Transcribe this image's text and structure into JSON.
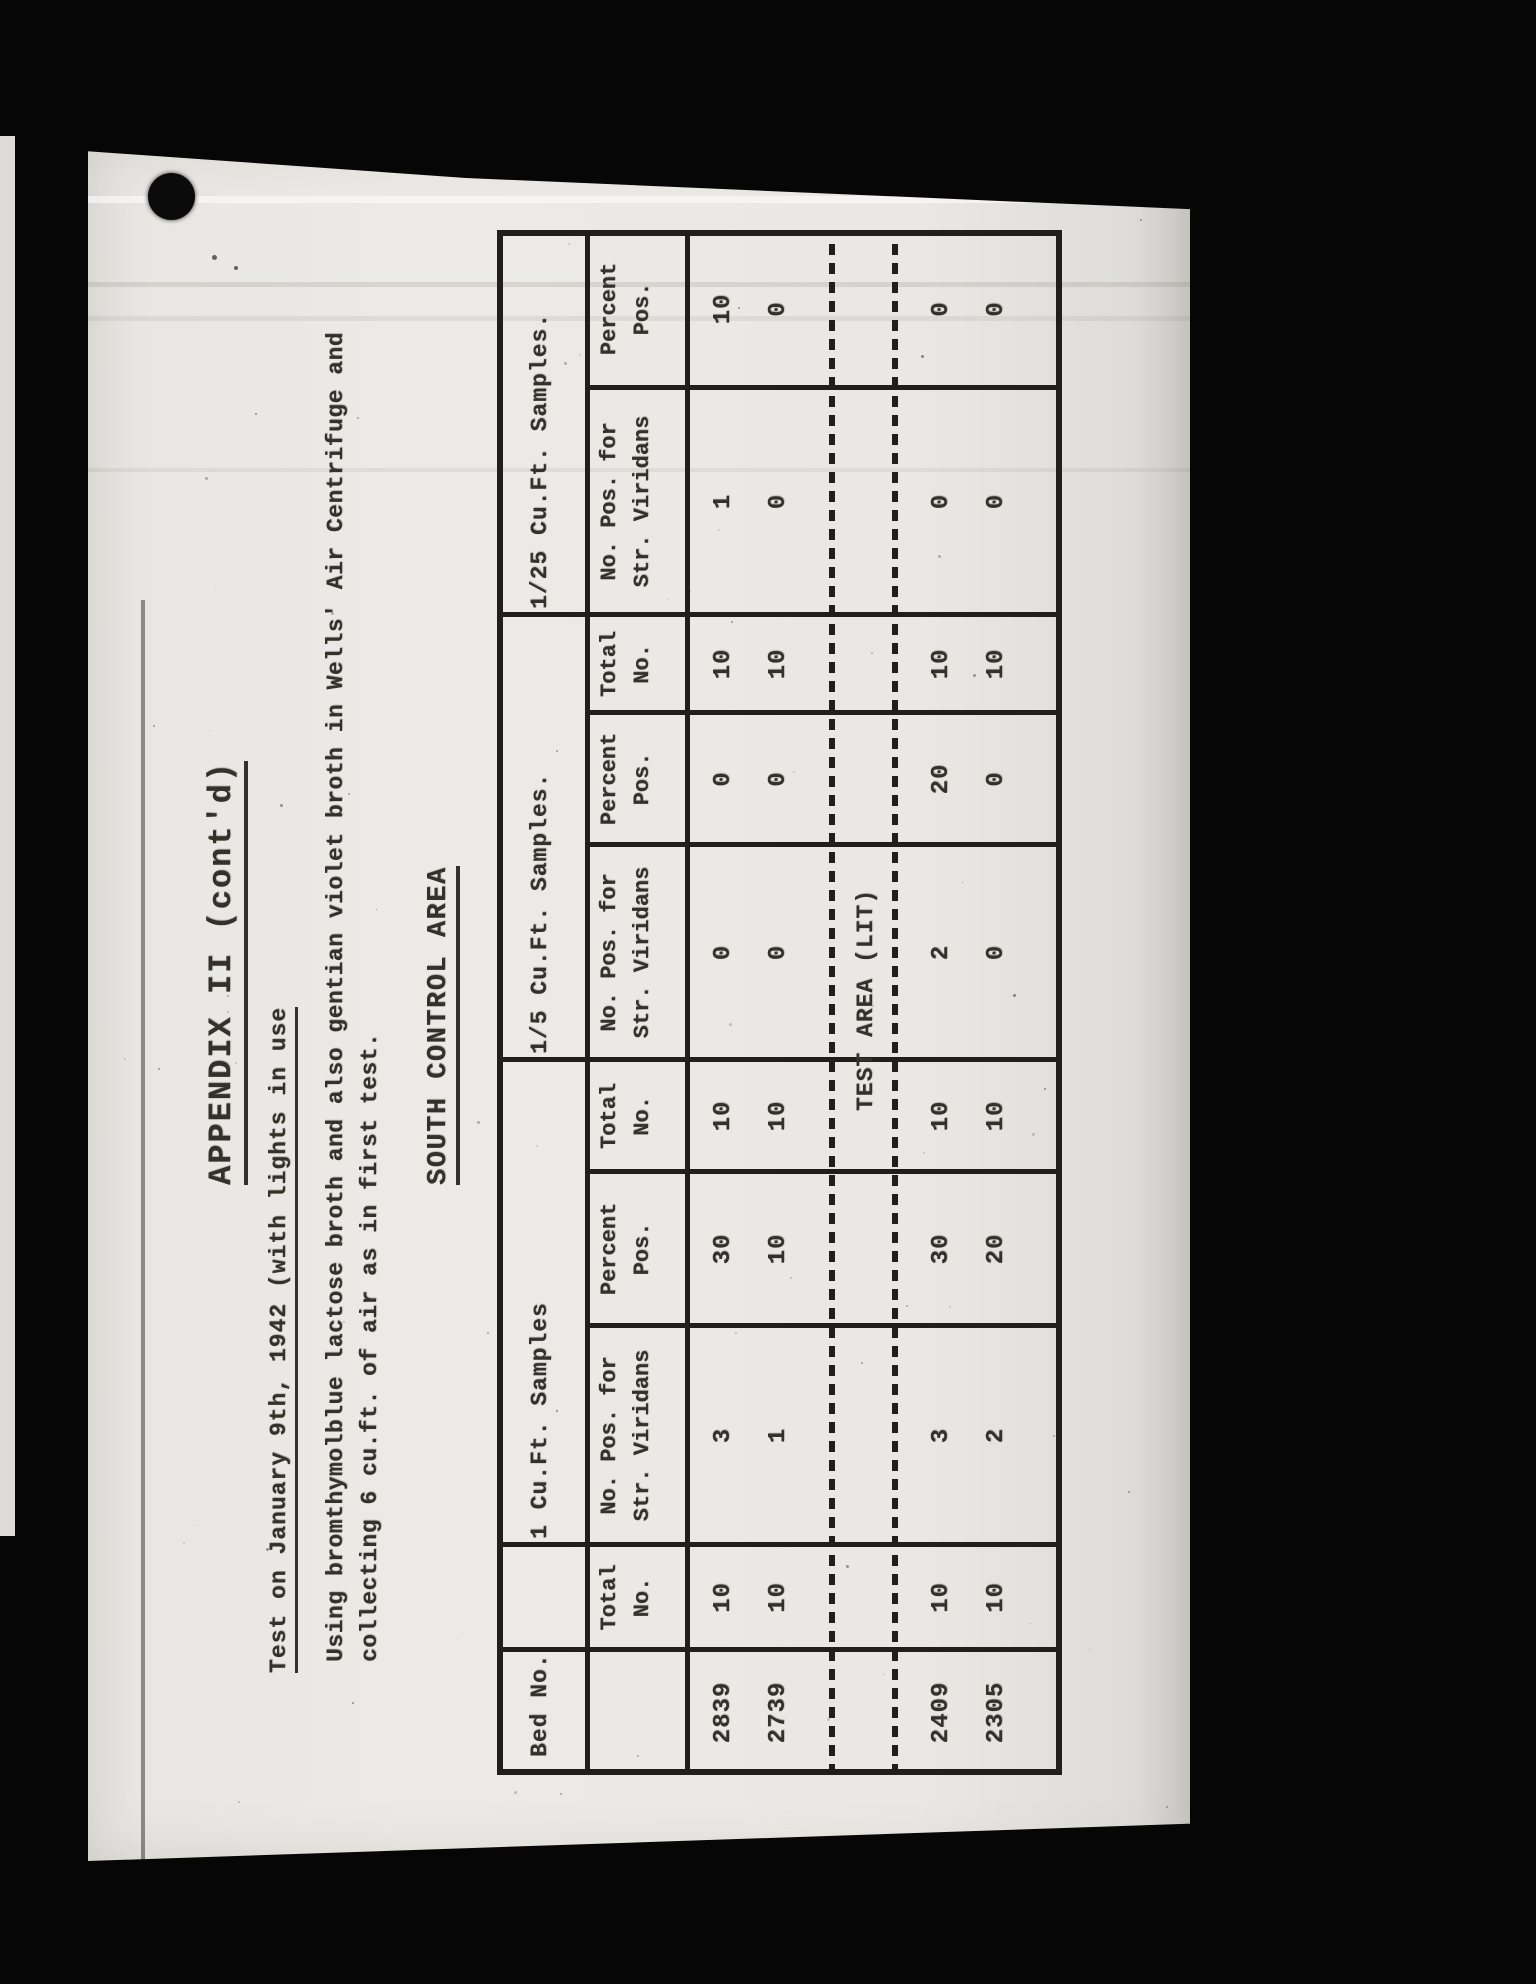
{
  "document": {
    "appendix_title": "APPENDIX II (cont'd)",
    "test_title": "Test on January 9th, 1942 (with lights in use",
    "description": {
      "line1": "Using bromthymolblue lactose broth and also gentian violet broth in Wells' Air Centrifuge and",
      "line2": "collecting 6 cu.ft. of air as in first test."
    },
    "section_title": "SOUTH CONTROL AREA"
  },
  "table": {
    "bed_header": "Bed No.",
    "groups": [
      {
        "label": "1 Cu.Ft. Samples",
        "sub": [
          "Total\nNo.",
          "No. Pos. for\nStr. Viridans",
          "Percent\nPos."
        ]
      },
      {
        "label": "1/5 Cu.Ft. Samples.",
        "sub": [
          "Total\nNo.",
          "No. Pos. for\nStr. Viridans",
          "Percent\nPos."
        ]
      },
      {
        "label": "1/25 Cu.Ft. Samples.",
        "sub": [
          "Total\nNo.",
          "No. Pos. for\nStr. Viridans",
          "Percent\nPos."
        ]
      }
    ],
    "control_rows": [
      {
        "bed": "2839",
        "values": [
          "10",
          "3",
          "30",
          "10",
          "0",
          "0",
          "10",
          "1",
          "10"
        ]
      },
      {
        "bed": "2739",
        "values": [
          "10",
          "1",
          "10",
          "10",
          "0",
          "0",
          "10",
          "0",
          "0"
        ]
      }
    ],
    "divider_label": "TEST AREA (LIT)",
    "test_rows": [
      {
        "bed": "2409",
        "values": [
          "10",
          "3",
          "30",
          "10",
          "2",
          "20",
          "10",
          "0",
          "0"
        ]
      },
      {
        "bed": "2305",
        "values": [
          "10",
          "2",
          "20",
          "10",
          "0",
          "0",
          "10",
          "0",
          "0"
        ]
      }
    ]
  },
  "colors": {
    "paper": "#e9e8e4",
    "ink": "#34312a",
    "line": "#211f1c",
    "background": "#070707"
  }
}
